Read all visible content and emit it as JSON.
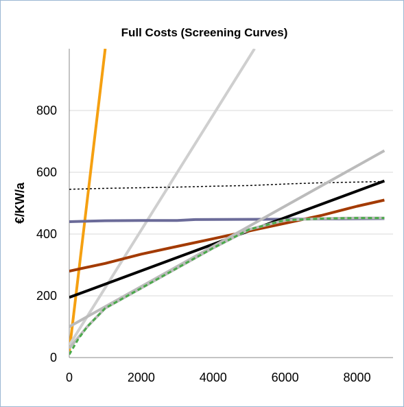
{
  "chart_data": {
    "type": "line",
    "title": "Full Costs (Screening Curves)",
    "xlabel": "",
    "ylabel": "€/KW/a",
    "xlim": [
      0,
      9000
    ],
    "ylim": [
      0,
      1000
    ],
    "x_ticks": [
      0,
      2000,
      4000,
      6000,
      8000
    ],
    "y_ticks": [
      0,
      200,
      400,
      600,
      800
    ],
    "grid": "horizontal",
    "legend": "none",
    "series": [
      {
        "color": "#f5a011",
        "style": "solid",
        "x": [
          0,
          1000
        ],
        "y": [
          20,
          1000
        ]
      },
      {
        "color": "#cfcfcf",
        "style": "solid",
        "x": [
          0,
          5150
        ],
        "y": [
          40,
          1000
        ]
      },
      {
        "color": "#000000",
        "style": "dotted",
        "x": [
          0,
          1000,
          2000,
          3000,
          4000,
          5000,
          6000,
          7000,
          8760
        ],
        "y": [
          545,
          548,
          550,
          552,
          555,
          557,
          562,
          566,
          570
        ]
      },
      {
        "color": "#6b6b99",
        "style": "solid",
        "x": [
          0,
          1000,
          2000,
          3000,
          3500,
          6000,
          8760
        ],
        "y": [
          440,
          443,
          444,
          444,
          447,
          448,
          450
        ]
      },
      {
        "color": "#000000",
        "style": "solid",
        "x": [
          0,
          8760
        ],
        "y": [
          195,
          572
        ]
      },
      {
        "color": "#a33a00",
        "style": "solid",
        "x": [
          0,
          1000,
          2000,
          3000,
          4000,
          5000,
          6000,
          7000,
          8000,
          8760
        ],
        "y": [
          280,
          305,
          335,
          360,
          385,
          410,
          435,
          460,
          490,
          510
        ]
      },
      {
        "color": "#bbbbbb",
        "style": "solid",
        "x": [
          0,
          8760
        ],
        "y": [
          100,
          670
        ]
      },
      {
        "color": "#bbbbbb",
        "style": "solid",
        "x": [
          0,
          500,
          1000,
          2000,
          3000,
          4000,
          5000,
          6000,
          7000,
          8000,
          8760
        ],
        "y": [
          30,
          100,
          160,
          225,
          290,
          355,
          415,
          445,
          450,
          452,
          452
        ]
      },
      {
        "color": "#4aaa4a",
        "style": "dashed",
        "x": [
          0,
          250,
          500,
          1000,
          2000,
          3000,
          4000,
          5000,
          6000,
          7000,
          8000,
          8760
        ],
        "y": [
          10,
          60,
          100,
          160,
          225,
          290,
          355,
          415,
          445,
          450,
          452,
          452
        ]
      }
    ]
  }
}
